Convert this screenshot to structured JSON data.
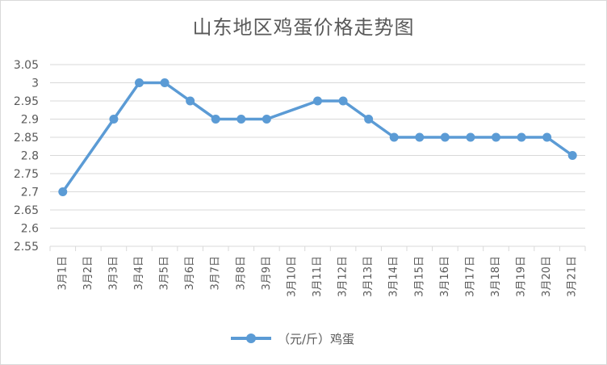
{
  "chart_data": {
    "type": "line",
    "title": "山东地区鸡蛋价格走势图",
    "xlabel": "",
    "ylabel": "",
    "categories": [
      "3月1日",
      "3月2日",
      "3月3日",
      "3月4日",
      "3月5日",
      "3月6日",
      "3月7日",
      "3月8日",
      "3月9日",
      "3月10日",
      "3月11日",
      "3月12日",
      "3月13日",
      "3月14日",
      "3月15日",
      "3月16日",
      "3月17日",
      "3月18日",
      "3月19日",
      "3月20日",
      "3月21日"
    ],
    "series": [
      {
        "name": "（元/斤）鸡蛋",
        "values": [
          2.7,
          null,
          2.9,
          3.0,
          3.0,
          2.95,
          2.9,
          2.9,
          2.9,
          null,
          2.95,
          2.95,
          2.9,
          2.85,
          2.85,
          2.85,
          2.85,
          2.85,
          2.85,
          2.85,
          2.8
        ],
        "color": "#5b9bd5"
      }
    ],
    "ylim": [
      2.55,
      3.05
    ],
    "yticks": [
      "3.05",
      "3",
      "2.95",
      "2.9",
      "2.85",
      "2.8",
      "2.75",
      "2.7",
      "2.65",
      "2.6",
      "2.55"
    ],
    "grid": true,
    "legend": "bottom"
  }
}
